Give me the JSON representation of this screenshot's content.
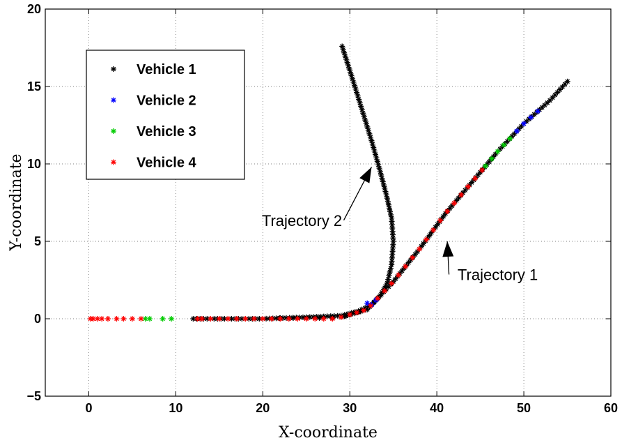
{
  "chart_data": {
    "type": "scatter",
    "xlabel": "X-coordinate",
    "ylabel": "Y-coordinate",
    "xlim": [
      -5,
      60
    ],
    "ylim": [
      -5,
      20
    ],
    "xticks": [
      "0",
      "10",
      "20",
      "30",
      "40",
      "50",
      "60"
    ],
    "yticks": [
      "−5",
      "0",
      "5",
      "10",
      "15",
      "20"
    ],
    "xtick_values": [
      0,
      10,
      20,
      30,
      40,
      50,
      60
    ],
    "ytick_values": [
      -5,
      0,
      5,
      10,
      15,
      20
    ],
    "grid": true,
    "legend_position": "top-left",
    "marker": "*",
    "series": [
      {
        "name": "Vehicle 1",
        "color": "#000000"
      },
      {
        "name": "Vehicle 2",
        "color": "#0000ff"
      },
      {
        "name": "Vehicle 3",
        "color": "#00cc00"
      },
      {
        "name": "Vehicle 4",
        "color": "#ff0000"
      }
    ],
    "trajectories": [
      {
        "color": "#000000",
        "points": [
          [
            12,
            0
          ],
          [
            20,
            0
          ],
          [
            25,
            0.1
          ],
          [
            29,
            0.2
          ],
          [
            31,
            0.5
          ],
          [
            32.5,
            0.9
          ],
          [
            33.5,
            1.5
          ],
          [
            34.3,
            2.3
          ],
          [
            34.8,
            3.5
          ],
          [
            35,
            5
          ],
          [
            34.8,
            6.5
          ],
          [
            34.2,
            8
          ],
          [
            33.5,
            9.5
          ],
          [
            32.5,
            11.5
          ],
          [
            31.4,
            13.5
          ],
          [
            30.3,
            15.5
          ],
          [
            29,
            17.8
          ]
        ]
      },
      {
        "color": "#000000",
        "points": [
          [
            29,
            0.1
          ],
          [
            32,
            0.6
          ],
          [
            35,
            2.4
          ],
          [
            38,
            4.5
          ],
          [
            41,
            6.8
          ],
          [
            44,
            8.8
          ],
          [
            47,
            10.8
          ],
          [
            50,
            12.6
          ],
          [
            53,
            14.1
          ],
          [
            55.3,
            15.5
          ]
        ]
      }
    ],
    "segments": [
      {
        "series": "Vehicle 1",
        "x_range": [
          22,
          32
        ],
        "x_points": [
          22,
          23.5,
          25,
          26.5,
          28,
          29.5,
          31
        ]
      },
      {
        "series": "Vehicle 2",
        "x_range": [
          12,
          33
        ],
        "x_points": [
          32,
          32.5,
          33
        ]
      },
      {
        "series": "Vehicle 2",
        "x_range": [
          49,
          52
        ],
        "x_points": [
          49.2,
          50,
          50.8,
          51.6
        ]
      },
      {
        "series": "Vehicle 3",
        "x_range": [
          6,
          10
        ],
        "x_points": [
          6.5,
          7,
          8.5,
          9.5
        ]
      },
      {
        "series": "Vehicle 3",
        "x_range": [
          45.5,
          49
        ],
        "x_points": [
          45.6,
          46.3,
          47,
          47.7,
          48.4
        ]
      },
      {
        "series": "Vehicle 4",
        "x_range": [
          0,
          45.5
        ],
        "x_points": [
          0.2,
          0.5,
          1,
          1.5,
          2.2,
          3.2,
          4,
          5,
          6,
          12.5,
          13,
          14,
          15,
          16,
          17,
          18,
          19,
          20,
          21,
          22,
          23,
          24,
          25,
          26,
          27,
          28,
          29,
          30,
          30.8,
          31.6,
          32.4,
          33.2,
          34,
          34.8,
          35.6,
          36.4,
          37.2,
          38,
          38.8,
          39.6,
          40.4,
          41.2,
          42,
          42.8,
          43.6,
          44.4,
          45.2
        ]
      }
    ],
    "annotations": [
      {
        "text": "Trajectory 2",
        "text_at": [
          24.5,
          6
        ],
        "arrow_to": [
          32.5,
          9.8
        ]
      },
      {
        "text": "Trajectory 1",
        "text_at": [
          47,
          2.5
        ],
        "arrow_to": [
          41.2,
          5
        ]
      }
    ]
  }
}
